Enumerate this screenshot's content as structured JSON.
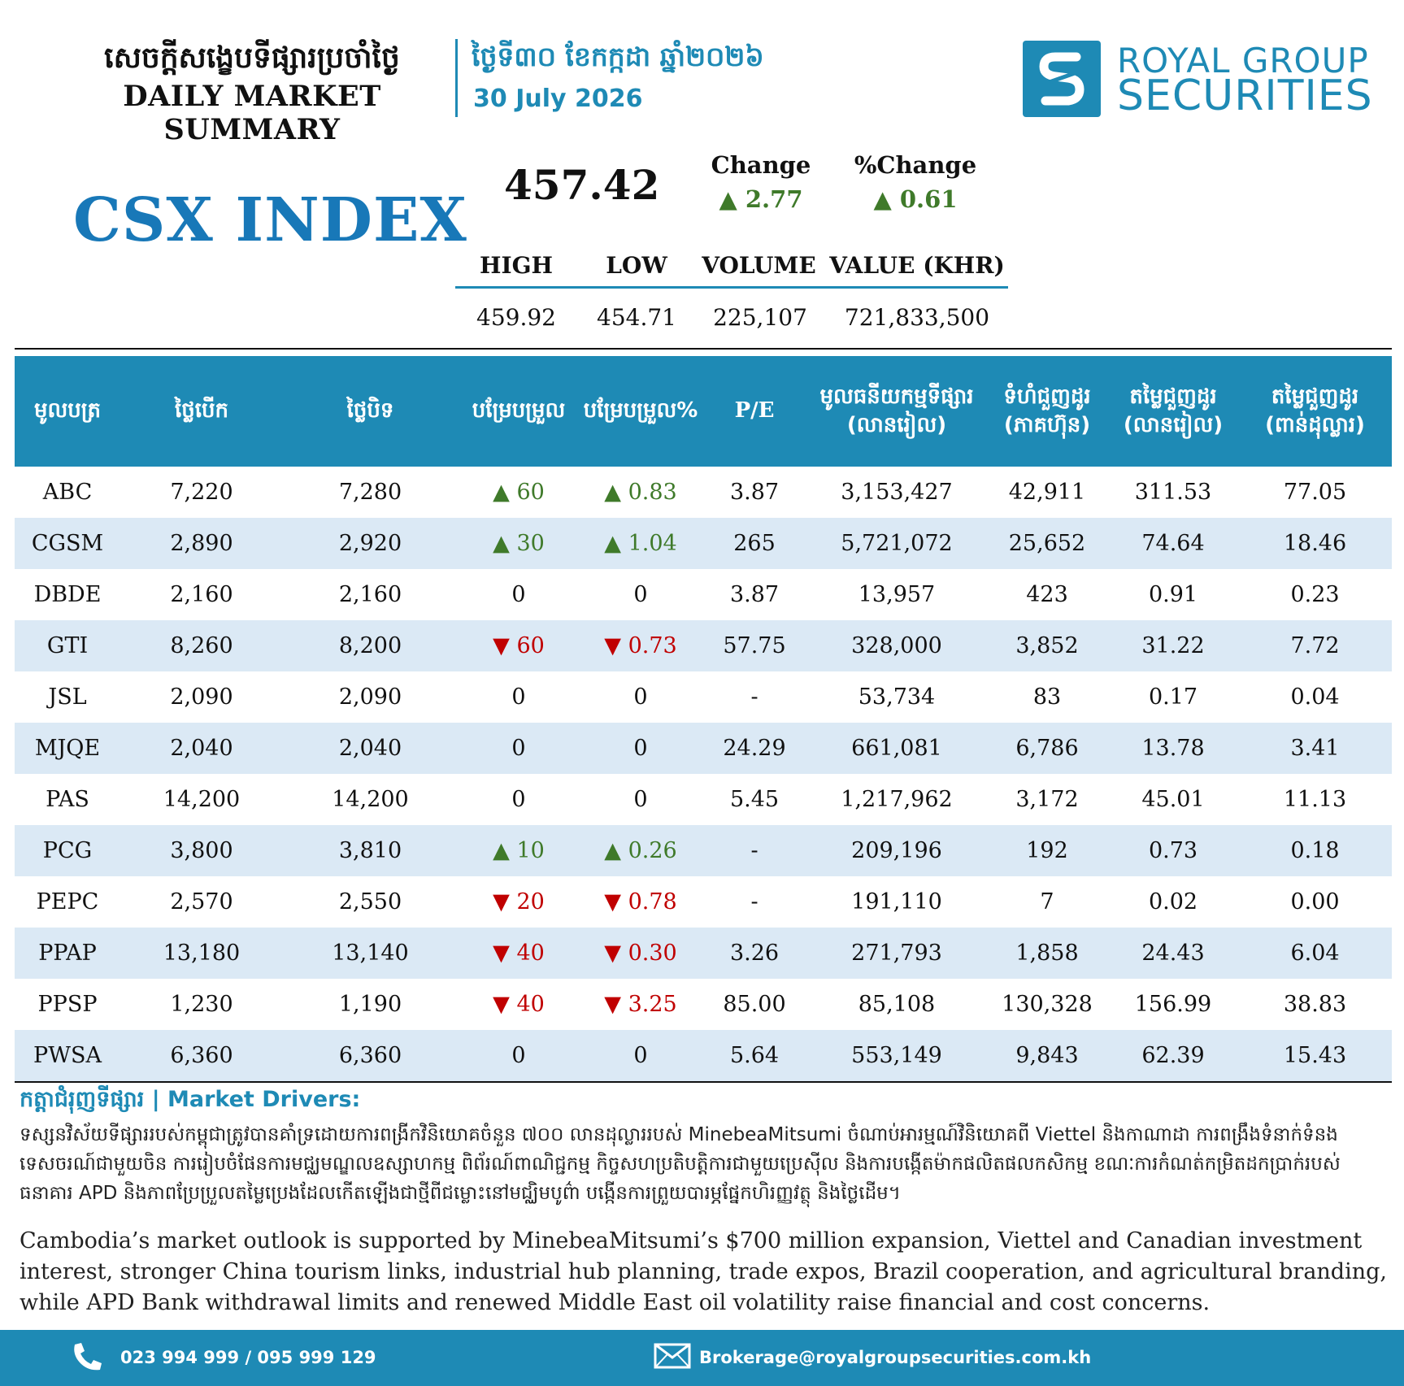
{
  "header": {
    "title_km": "សេចក្តីសង្ខេបទីផ្សារប្រចាំថ្ងៃ",
    "title_en": "DAILY MARKET SUMMARY",
    "date_km": "ថ្ងៃទី៣០ ខែកក្កដា ឆ្នាំ២០២៦",
    "date_en": "30 July 2026",
    "logo_line1": "ROYAL GROUP",
    "logo_line2": "SECURITIES"
  },
  "index": {
    "name": "CSX INDEX",
    "value": "457.42",
    "change_label": "Change",
    "change_value": "▲ 2.77",
    "pct_change_label": "%Change",
    "pct_change_value": "▲ 0.61",
    "high_label": "HIGH",
    "low_label": "LOW",
    "volume_label": "VOLUME",
    "value_label": "VALUE (KHR)",
    "high": "459.92",
    "low": "454.71",
    "volume": "225,107",
    "value_khr": "721,833,500"
  },
  "table": {
    "headers": {
      "symbol": "មូលបត្រ",
      "open": "ថ្លៃបើក",
      "close": "ថ្លៃបិទ",
      "change": "បម្រែបម្រួល",
      "pct_change": "បម្រែបម្រួល%",
      "pe": "P/E",
      "mcap_1": "មូលធនីយកម្មទីផ្សារ",
      "mcap_2": "(លានរៀល)",
      "vol_1": "ទំហំជួញដូរ",
      "vol_2": "(ភាគហ៊ុន)",
      "val_riel_1": "តម្លៃជួញដូរ",
      "val_riel_2": "(លានរៀល)",
      "val_usd_1": "តម្លៃជួញដូរ",
      "val_usd_2": "(ពាន់ដុល្លារ)"
    },
    "rows": [
      {
        "symbol": "ABC",
        "open": "7,220",
        "close": "7,280",
        "change": "▲ 60",
        "pct": "▲ 0.83",
        "dir": "up",
        "pe": "3.87",
        "mcap": "3,153,427",
        "vol": "42,911",
        "val_riel": "311.53",
        "val_usd": "77.05"
      },
      {
        "symbol": "CGSM",
        "open": "2,890",
        "close": "2,920",
        "change": "▲ 30",
        "pct": "▲ 1.04",
        "dir": "up",
        "pe": "265",
        "mcap": "5,721,072",
        "vol": "25,652",
        "val_riel": "74.64",
        "val_usd": "18.46"
      },
      {
        "symbol": "DBDE",
        "open": "2,160",
        "close": "2,160",
        "change": "0",
        "pct": "0",
        "dir": "flat",
        "pe": "3.87",
        "mcap": "13,957",
        "vol": "423",
        "val_riel": "0.91",
        "val_usd": "0.23"
      },
      {
        "symbol": "GTI",
        "open": "8,260",
        "close": "8,200",
        "change": "▼ 60",
        "pct": "▼ 0.73",
        "dir": "down",
        "pe": "57.75",
        "mcap": "328,000",
        "vol": "3,852",
        "val_riel": "31.22",
        "val_usd": "7.72"
      },
      {
        "symbol": "JSL",
        "open": "2,090",
        "close": "2,090",
        "change": "0",
        "pct": "0",
        "dir": "flat",
        "pe": "-",
        "mcap": "53,734",
        "vol": "83",
        "val_riel": "0.17",
        "val_usd": "0.04"
      },
      {
        "symbol": "MJQE",
        "open": "2,040",
        "close": "2,040",
        "change": "0",
        "pct": "0",
        "dir": "flat",
        "pe": "24.29",
        "mcap": "661,081",
        "vol": "6,786",
        "val_riel": "13.78",
        "val_usd": "3.41"
      },
      {
        "symbol": "PAS",
        "open": "14,200",
        "close": "14,200",
        "change": "0",
        "pct": "0",
        "dir": "flat",
        "pe": "5.45",
        "mcap": "1,217,962",
        "vol": "3,172",
        "val_riel": "45.01",
        "val_usd": "11.13"
      },
      {
        "symbol": "PCG",
        "open": "3,800",
        "close": "3,810",
        "change": "▲ 10",
        "pct": "▲ 0.26",
        "dir": "up",
        "pe": "-",
        "mcap": "209,196",
        "vol": "192",
        "val_riel": "0.73",
        "val_usd": "0.18"
      },
      {
        "symbol": "PEPC",
        "open": "2,570",
        "close": "2,550",
        "change": "▼ 20",
        "pct": "▼ 0.78",
        "dir": "down",
        "pe": "-",
        "mcap": "191,110",
        "vol": "7",
        "val_riel": "0.02",
        "val_usd": "0.00"
      },
      {
        "symbol": "PPAP",
        "open": "13,180",
        "close": "13,140",
        "change": "▼ 40",
        "pct": "▼ 0.30",
        "dir": "down",
        "pe": "3.26",
        "mcap": "271,793",
        "vol": "1,858",
        "val_riel": "24.43",
        "val_usd": "6.04"
      },
      {
        "symbol": "PPSP",
        "open": "1,230",
        "close": "1,190",
        "change": "▼ 40",
        "pct": "▼ 3.25",
        "dir": "down",
        "pe": "85.00",
        "mcap": "85,108",
        "vol": "130,328",
        "val_riel": "156.99",
        "val_usd": "38.83"
      },
      {
        "symbol": "PWSA",
        "open": "6,360",
        "close": "6,360",
        "change": "0",
        "pct": "0",
        "dir": "flat",
        "pe": "5.64",
        "mcap": "553,149",
        "vol": "9,843",
        "val_riel": "62.39",
        "val_usd": "15.43"
      }
    ]
  },
  "drivers": {
    "title": "កត្តាជំរុញទីផ្សារ | Market Drivers:",
    "text_km": "ទស្សនវិស័យទីផ្សាររបស់កម្ពុជាត្រូវបានគាំទ្រដោយការពង្រីកវិនិយោគចំនួន ៧០០ លានដុល្លាររបស់ MinebeaMitsumi ចំណាប់អារម្មណ៍វិនិយោគពី Viettel និងកាណាដា ការពង្រឹងទំនាក់ទំនងទេសចរណ៍ជាមួយចិន ការរៀបចំផែនការមជ្ឈមណ្ឌលឧស្សាហកម្ម ពិព័រណ៍ពាណិជ្ជកម្ម កិច្ចសហប្រតិបត្តិការជាមួយប្រេស៊ីល និងការបង្កើតម៉ាកផលិតផលកសិកម្ម ខណៈការកំណត់កម្រិតដកប្រាក់របស់ធនាគារ APD និងភាពប្រែប្រួលតម្លៃប្រេងដែលកើតឡើងជាថ្មីពីជម្លោះនៅមជ្ឈិមបូព៌ា បង្កើនការព្រួយបារម្ភផ្នែកហិរញ្ញវត្ថុ និងថ្លៃដើម។",
    "text_en": "Cambodia’s market outlook is supported by MinebeaMitsumi’s $700 million expansion, Viettel and Canadian investment interest, stronger China tourism links, industrial hub planning, trade expos, Brazil cooperation, and agricultural branding, while APD Bank withdrawal limits and renewed Middle East oil volatility raise financial and cost concerns."
  },
  "footer": {
    "phone": "023 994 999 / 095 999 129",
    "email": "Brokerage@royalgroupsecurities.com.kh"
  },
  "icons": {
    "phone": "phone-icon",
    "email": "envelope-icon",
    "logo": "royal-group-logo-icon"
  },
  "colors": {
    "accent": "#1e8ab5",
    "index_title": "#1878b8",
    "up": "#3f7a2a",
    "down": "#c00000",
    "row_alt": "#dbe9f5"
  }
}
